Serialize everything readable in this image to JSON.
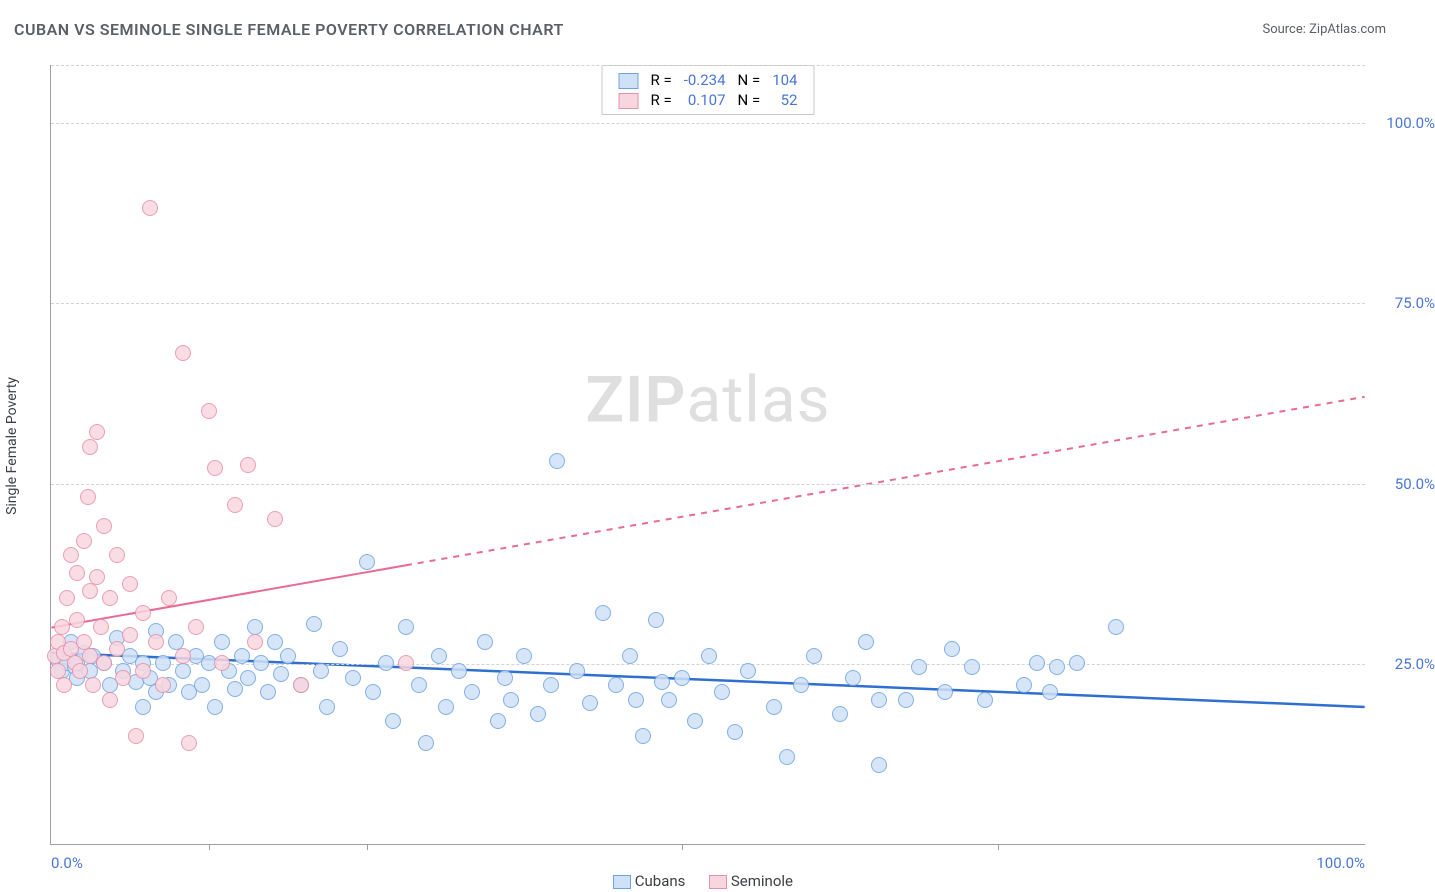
{
  "title": "CUBAN VS SEMINOLE SINGLE FEMALE POVERTY CORRELATION CHART",
  "source_label": "Source: ",
  "source_name": "ZipAtlas.com",
  "y_label": "Single Female Poverty",
  "watermark_strong": "ZIP",
  "watermark_light": "atlas",
  "chart": {
    "type": "scatter",
    "background_color": "#ffffff",
    "gridline_color": "#d0d3d7",
    "axis_color": "#9aa0a6",
    "xlim": [
      0,
      100
    ],
    "ylim": [
      0,
      108
    ],
    "x_ticks_major": [
      0,
      100
    ],
    "x_ticks_minor": [
      12,
      24,
      48,
      72
    ],
    "x_tick_labels": [
      "0.0%",
      "100.0%"
    ],
    "x_tick_color": "#4a76d4",
    "y_ticks": [
      25,
      50,
      75,
      100
    ],
    "y_tick_labels": [
      "25.0%",
      "50.0%",
      "75.0%",
      "100.0%"
    ],
    "y_tick_color": "#4a76d4",
    "title_fontsize": 16,
    "label_fontsize": 14,
    "tick_fontsize": 15,
    "point_radius": 8,
    "point_stroke_width": 1.2,
    "series": [
      {
        "name": "Cubans",
        "fill": "#cfe1f7",
        "stroke": "#6fa3e0",
        "legend_swatch_fill": "#cfe1f7",
        "legend_swatch_stroke": "#6fa3e0",
        "stats": {
          "R_label": "R =",
          "R": "-0.234",
          "N_label": "N =",
          "N": "104"
        },
        "trend": {
          "type": "solid",
          "color": "#2f6fd0",
          "width": 2.5,
          "x1": 0,
          "y1": 26.5,
          "x2": 100,
          "y2": 19.0
        },
        "points": [
          [
            0.5,
            25.5
          ],
          [
            0.8,
            24.0
          ],
          [
            1.0,
            26.0
          ],
          [
            1.2,
            25.0
          ],
          [
            1.5,
            28.0
          ],
          [
            1.8,
            24.5
          ],
          [
            2.0,
            25.0
          ],
          [
            2.0,
            23.0
          ],
          [
            2.5,
            26.5
          ],
          [
            3.0,
            24.0
          ],
          [
            3.2,
            26.0
          ],
          [
            4.0,
            25.0
          ],
          [
            4.5,
            22.0
          ],
          [
            5.0,
            28.5
          ],
          [
            5.5,
            24.0
          ],
          [
            6.0,
            26.0
          ],
          [
            6.5,
            22.5
          ],
          [
            7.0,
            25.0
          ],
          [
            7.0,
            19.0
          ],
          [
            7.5,
            23.0
          ],
          [
            8.0,
            29.5
          ],
          [
            8.0,
            21.0
          ],
          [
            8.5,
            25.0
          ],
          [
            9.0,
            22.0
          ],
          [
            9.5,
            28.0
          ],
          [
            10.0,
            24.0
          ],
          [
            10.5,
            21.0
          ],
          [
            11.0,
            26.0
          ],
          [
            11.5,
            22.0
          ],
          [
            12.0,
            25.0
          ],
          [
            12.5,
            19.0
          ],
          [
            13.0,
            28.0
          ],
          [
            13.5,
            24.0
          ],
          [
            14.0,
            21.5
          ],
          [
            14.5,
            26.0
          ],
          [
            15.0,
            23.0
          ],
          [
            15.5,
            30.0
          ],
          [
            16.0,
            25.0
          ],
          [
            16.5,
            21.0
          ],
          [
            17.0,
            28.0
          ],
          [
            17.5,
            23.5
          ],
          [
            18.0,
            26.0
          ],
          [
            19.0,
            22.0
          ],
          [
            20.0,
            30.5
          ],
          [
            20.5,
            24.0
          ],
          [
            21.0,
            19.0
          ],
          [
            22.0,
            27.0
          ],
          [
            23.0,
            23.0
          ],
          [
            24.0,
            39.0
          ],
          [
            24.5,
            21.0
          ],
          [
            25.5,
            25.0
          ],
          [
            26.0,
            17.0
          ],
          [
            27.0,
            30.0
          ],
          [
            28.0,
            22.0
          ],
          [
            28.5,
            14.0
          ],
          [
            29.5,
            26.0
          ],
          [
            30.0,
            19.0
          ],
          [
            31.0,
            24.0
          ],
          [
            32.0,
            21.0
          ],
          [
            33.0,
            28.0
          ],
          [
            34.0,
            17.0
          ],
          [
            34.5,
            23.0
          ],
          [
            35.0,
            20.0
          ],
          [
            36.0,
            26.0
          ],
          [
            37.0,
            18.0
          ],
          [
            38.0,
            22.0
          ],
          [
            38.5,
            53.0
          ],
          [
            40.0,
            24.0
          ],
          [
            41.0,
            19.5
          ],
          [
            42.0,
            32.0
          ],
          [
            43.0,
            22.0
          ],
          [
            44.0,
            26.0
          ],
          [
            45.0,
            15.0
          ],
          [
            46.0,
            31.0
          ],
          [
            47.0,
            20.0
          ],
          [
            48.0,
            23.0
          ],
          [
            49.0,
            17.0
          ],
          [
            50.0,
            26.0
          ],
          [
            51.0,
            21.0
          ],
          [
            52.0,
            15.5
          ],
          [
            53.0,
            24.0
          ],
          [
            55.0,
            19.0
          ],
          [
            56.0,
            12.0
          ],
          [
            57.0,
            22.0
          ],
          [
            58.0,
            26.0
          ],
          [
            60.0,
            18.0
          ],
          [
            61.0,
            23.0
          ],
          [
            62.0,
            28.0
          ],
          [
            63.0,
            11.0
          ],
          [
            65.0,
            20.0
          ],
          [
            66.0,
            24.5
          ],
          [
            68.0,
            21.0
          ],
          [
            70.0,
            24.5
          ],
          [
            71.0,
            20.0
          ],
          [
            74.0,
            22.0
          ],
          [
            75.0,
            25.0
          ],
          [
            76.0,
            21.0
          ],
          [
            76.5,
            24.5
          ],
          [
            78.0,
            25.0
          ],
          [
            81.0,
            30.0
          ],
          [
            63.0,
            20.0
          ],
          [
            68.5,
            27.0
          ],
          [
            44.5,
            20.0
          ],
          [
            46.5,
            22.5
          ]
        ]
      },
      {
        "name": "Seminole",
        "fill": "#f8d6e0",
        "stroke": "#e88fa9",
        "legend_swatch_fill": "#f8d6e0",
        "legend_swatch_stroke": "#e88fa9",
        "stats": {
          "R_label": "R =",
          "R": "0.107",
          "N_label": "N =",
          "N": "52"
        },
        "trend": {
          "type": "solid-then-dashed",
          "color": "#e86b93",
          "width": 2,
          "x1": 0,
          "y1": 30.0,
          "x2": 100,
          "y2": 62.0,
          "solid_until_x": 27
        },
        "points": [
          [
            0.3,
            26.0
          ],
          [
            0.5,
            28.0
          ],
          [
            0.5,
            24.0
          ],
          [
            0.8,
            30.0
          ],
          [
            1.0,
            26.5
          ],
          [
            1.0,
            22.0
          ],
          [
            1.2,
            34.0
          ],
          [
            1.5,
            27.0
          ],
          [
            1.5,
            40.0
          ],
          [
            1.8,
            25.0
          ],
          [
            2.0,
            37.5
          ],
          [
            2.0,
            31.0
          ],
          [
            2.2,
            24.0
          ],
          [
            2.5,
            42.0
          ],
          [
            2.5,
            28.0
          ],
          [
            2.8,
            48.0
          ],
          [
            3.0,
            26.0
          ],
          [
            3.0,
            35.0
          ],
          [
            3.0,
            55.0
          ],
          [
            3.2,
            22.0
          ],
          [
            3.5,
            37.0
          ],
          [
            3.5,
            57.0
          ],
          [
            3.8,
            30.0
          ],
          [
            4.0,
            25.0
          ],
          [
            4.0,
            44.0
          ],
          [
            4.5,
            34.0
          ],
          [
            4.5,
            20.0
          ],
          [
            5.0,
            27.0
          ],
          [
            5.0,
            40.0
          ],
          [
            5.5,
            23.0
          ],
          [
            6.0,
            36.0
          ],
          [
            6.0,
            29.0
          ],
          [
            6.5,
            15.0
          ],
          [
            7.0,
            32.0
          ],
          [
            7.0,
            24.0
          ],
          [
            7.5,
            88.0
          ],
          [
            8.0,
            28.0
          ],
          [
            8.5,
            22.0
          ],
          [
            9.0,
            34.0
          ],
          [
            10.0,
            68.0
          ],
          [
            10.0,
            26.0
          ],
          [
            10.5,
            14.0
          ],
          [
            11.0,
            30.0
          ],
          [
            12.0,
            60.0
          ],
          [
            12.5,
            52.0
          ],
          [
            13.0,
            25.0
          ],
          [
            14.0,
            47.0
          ],
          [
            15.0,
            52.5
          ],
          [
            15.5,
            28.0
          ],
          [
            17.0,
            45.0
          ],
          [
            19.0,
            22.0
          ],
          [
            27.0,
            25.0
          ]
        ]
      }
    ]
  },
  "value_color": "#4a76d4"
}
